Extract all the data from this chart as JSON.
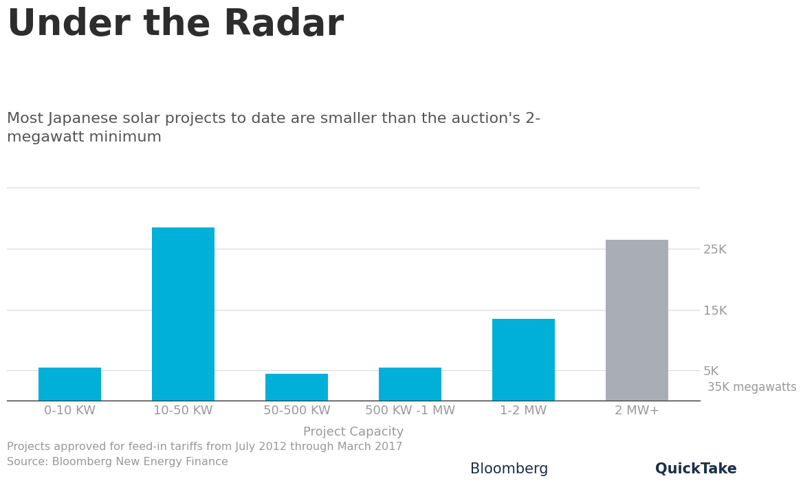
{
  "title": "Under the Radar",
  "subtitle": "Most Japanese solar projects to date are smaller than the auction's 2-\nmegawatt minimum",
  "categories": [
    "0-10 KW",
    "10-50 KW",
    "50-500 KW",
    "500 KW -1 MW",
    "1-2 MW",
    "2 MW+"
  ],
  "values": [
    5500,
    28500,
    4500,
    5500,
    13500,
    26500
  ],
  "bar_colors": [
    "#00b0d8",
    "#00b0d8",
    "#00b0d8",
    "#00b0d8",
    "#00b0d8",
    "#a9adb5"
  ],
  "xlabel": "Project Capacity",
  "ylabel_annotation": "35K megawatts",
  "yticks": [
    0,
    5000,
    15000,
    25000,
    35000
  ],
  "ytick_labels": [
    "",
    "5K",
    "15K",
    "25K",
    ""
  ],
  "ylim": [
    0,
    37000
  ],
  "footnote_line1": "Projects approved for feed-in tariffs from July 2012 through March 2017",
  "footnote_line2": "Source: Bloomberg New Energy Finance",
  "branding_regular": "Bloomberg",
  "branding_bold": "QuickTake",
  "background_color": "#ffffff",
  "title_color": "#2d2d2d",
  "subtitle_color": "#555555",
  "axis_label_color": "#999999",
  "tick_label_color": "#999999",
  "grid_color": "#d8d8d8",
  "footnote_color": "#999999",
  "branding_color": "#1a2e4a"
}
